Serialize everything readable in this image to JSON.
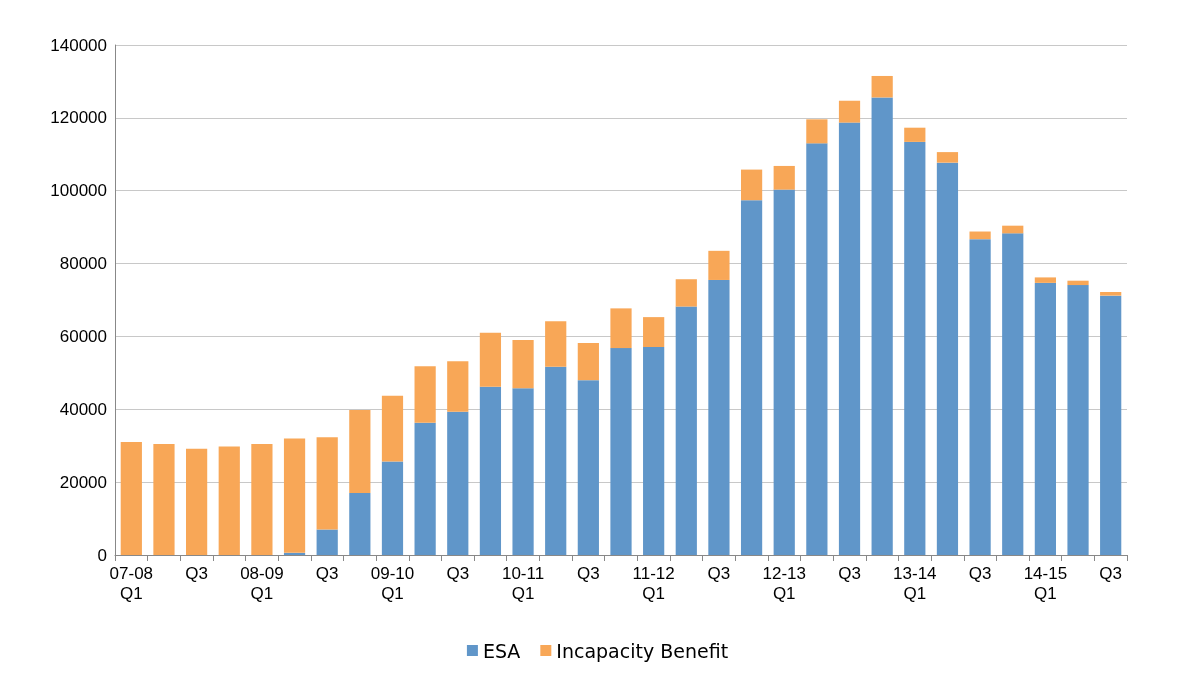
{
  "chart_data": {
    "type": "bar",
    "stacked": true,
    "categories": [
      "07-08\nQ1",
      null,
      "Q3",
      null,
      "08-09\nQ1",
      null,
      "Q3",
      null,
      "09-10\nQ1",
      null,
      "Q3",
      null,
      "10-11\nQ1",
      null,
      "Q3",
      null,
      "11-12\nQ1",
      null,
      "Q3",
      null,
      "12-13\nQ1",
      null,
      "Q3",
      null,
      "13-14\nQ1",
      null,
      "Q3",
      null,
      "14-15\nQ1",
      null,
      "Q3"
    ],
    "series": [
      {
        "name": "ESA",
        "color": "#6096c9",
        "values": [
          0,
          0,
          0,
          0,
          0,
          600,
          7000,
          17000,
          25700,
          36300,
          39300,
          46200,
          45800,
          51700,
          48000,
          56800,
          57100,
          68200,
          75500,
          97400,
          100300,
          113000,
          118700,
          125600,
          113400,
          107700,
          86700,
          88300,
          74700,
          74100,
          71200
        ]
      },
      {
        "name": "Incapacity Benefit",
        "color": "#f8a757",
        "values": [
          31000,
          30500,
          29200,
          29800,
          30500,
          31400,
          25300,
          22800,
          18000,
          15500,
          13900,
          14800,
          13200,
          12500,
          10200,
          10900,
          8200,
          7500,
          8000,
          8400,
          6500,
          6600,
          6000,
          5900,
          3900,
          2900,
          2100,
          2100,
          1500,
          1200,
          1000
        ]
      }
    ],
    "ylim": [
      0,
      140000
    ],
    "yticks": [
      0,
      20000,
      40000,
      60000,
      80000,
      100000,
      120000,
      140000
    ],
    "grid": "y",
    "legend": "bottom"
  }
}
